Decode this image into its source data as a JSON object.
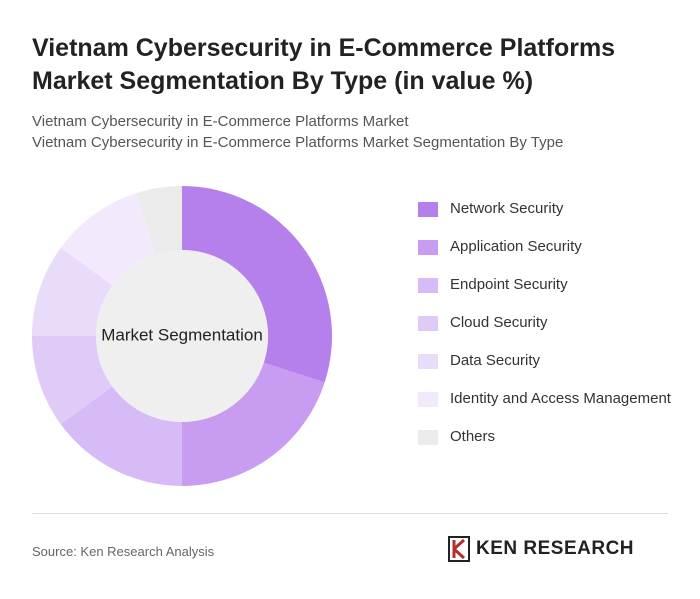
{
  "chart_data": {
    "type": "donut",
    "title": "Vietnam Cybersecurity in E-Commerce Platforms Market Segmentation By Type (in value %)",
    "subtitle": [
      "Vietnam Cybersecurity in E-Commerce Platforms Market",
      "Vietnam Cybersecurity in E-Commerce Platforms Market Segmentation By Type"
    ],
    "center_label": "Market Segmentation",
    "categories": [
      "Network Security",
      "Application Security",
      "Endpoint Security",
      "Cloud Security",
      "Data Security",
      "Identity and Access Management",
      "Others"
    ],
    "values": [
      30,
      20,
      15,
      10,
      10,
      10,
      5
    ],
    "colors": [
      "#b580eb",
      "#c79cf1",
      "#d7bbf6",
      "#e0caf8",
      "#e9dbfa",
      "#f2eafc",
      "#ebebeb"
    ],
    "source": "Source: Ken Research Analysis",
    "brand": "KEN RESEARCH"
  }
}
